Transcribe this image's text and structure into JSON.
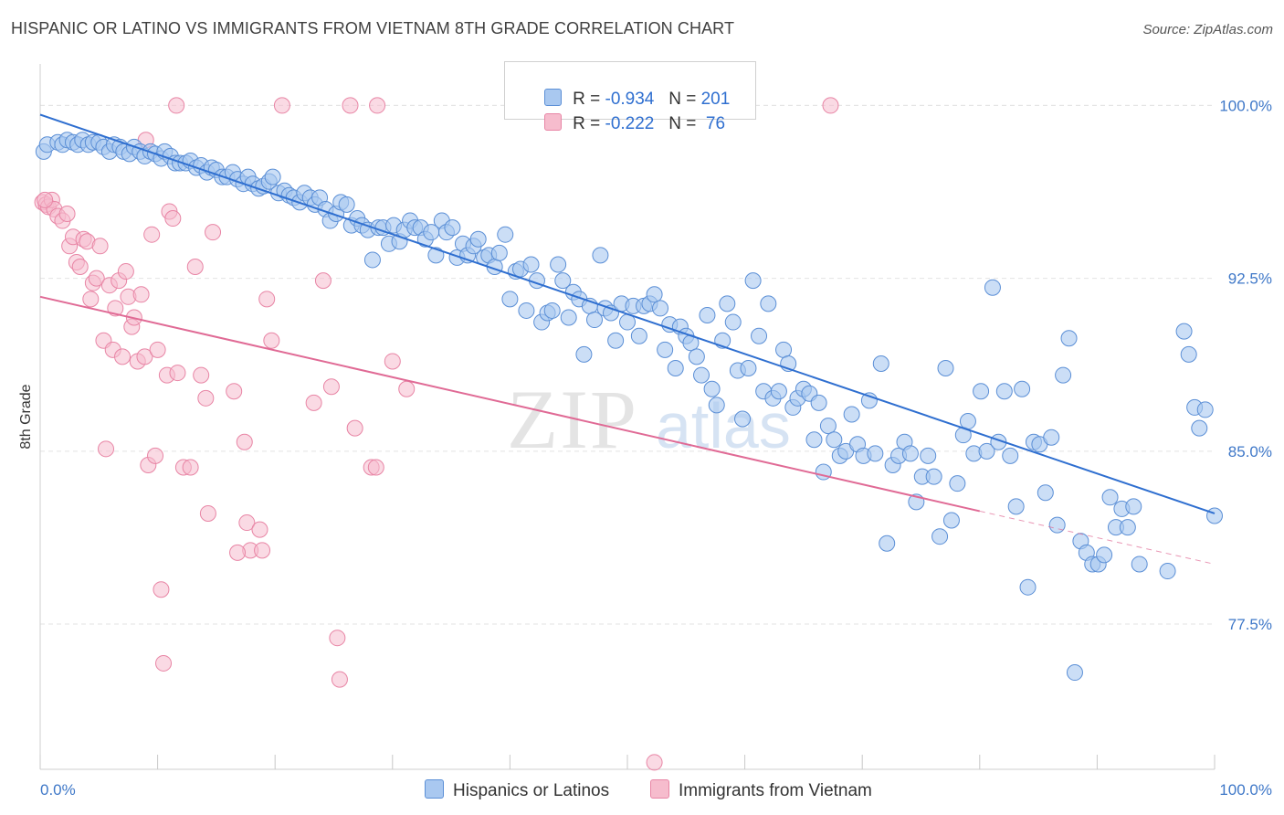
{
  "title": "HISPANIC OR LATINO VS IMMIGRANTS FROM VIETNAM 8TH GRADE CORRELATION CHART",
  "source": "Source: ZipAtlas.com",
  "legend": {
    "row1": {
      "r_label": "R = ",
      "r_value": "-0.934",
      "n_label": "N = ",
      "n_value": "201"
    },
    "row2": {
      "r_label": "R = ",
      "r_value": "-0.222",
      "n_label": "N = ",
      "n_value": " 76"
    }
  },
  "bottom_legend": {
    "series1": "Hispanics or Latinos",
    "series2": "Immigrants from Vietnam"
  },
  "chart_data": {
    "type": "scatter",
    "title": "HISPANIC OR LATINO VS IMMIGRANTS FROM VIETNAM 8TH GRADE CORRELATION CHART",
    "xlabel": "",
    "ylabel": "8th Grade",
    "xlim": [
      0,
      100
    ],
    "ylim": [
      71.2,
      101.8
    ],
    "x_tick_labels": [
      "0.0%",
      "100.0%"
    ],
    "y_ticks": [
      77.5,
      85.0,
      92.5,
      100.0
    ],
    "y_tick_labels": [
      "77.5%",
      "85.0%",
      "92.5%",
      "100.0%"
    ],
    "grid": true,
    "legend_position": "top-center",
    "colors": {
      "blue_fill": "#a9c8f0",
      "blue_stroke": "#5b8fd6",
      "blue_line": "#2f6fd0",
      "pink_fill": "#f6bccd",
      "pink_stroke": "#e885a5",
      "pink_line": "#e06a95"
    },
    "series": [
      {
        "name": "Hispanics or Latinos",
        "r": -0.934,
        "n": 201,
        "trend": {
          "x0": 0,
          "y0": 99.6,
          "x1": 100,
          "y1": 82.3
        },
        "points": [
          [
            0.3,
            98.0
          ],
          [
            0.6,
            98.3
          ],
          [
            1.5,
            98.4
          ],
          [
            1.9,
            98.3
          ],
          [
            2.3,
            98.5
          ],
          [
            2.8,
            98.4
          ],
          [
            3.2,
            98.3
          ],
          [
            3.6,
            98.5
          ],
          [
            4.1,
            98.3
          ],
          [
            4.5,
            98.4
          ],
          [
            5.0,
            98.4
          ],
          [
            5.4,
            98.2
          ],
          [
            5.9,
            98.0
          ],
          [
            6.3,
            98.3
          ],
          [
            6.8,
            98.2
          ],
          [
            7.1,
            98.0
          ],
          [
            7.6,
            97.9
          ],
          [
            8.0,
            98.2
          ],
          [
            8.5,
            98.0
          ],
          [
            8.9,
            97.8
          ],
          [
            9.4,
            98.0
          ],
          [
            9.8,
            97.9
          ],
          [
            10.3,
            97.7
          ],
          [
            10.6,
            98.0
          ],
          [
            11.1,
            97.8
          ],
          [
            11.5,
            97.5
          ],
          [
            11.9,
            97.5
          ],
          [
            12.4,
            97.5
          ],
          [
            12.8,
            97.6
          ],
          [
            13.3,
            97.3
          ],
          [
            13.7,
            97.4
          ],
          [
            14.2,
            97.1
          ],
          [
            14.6,
            97.3
          ],
          [
            15.0,
            97.2
          ],
          [
            15.5,
            96.9
          ],
          [
            15.9,
            96.9
          ],
          [
            16.4,
            97.1
          ],
          [
            16.8,
            96.8
          ],
          [
            17.3,
            96.6
          ],
          [
            17.7,
            96.9
          ],
          [
            18.1,
            96.6
          ],
          [
            18.6,
            96.4
          ],
          [
            19.0,
            96.5
          ],
          [
            19.5,
            96.7
          ],
          [
            19.8,
            96.9
          ],
          [
            20.3,
            96.2
          ],
          [
            20.8,
            96.3
          ],
          [
            21.2,
            96.1
          ],
          [
            21.6,
            96.0
          ],
          [
            22.1,
            95.8
          ],
          [
            22.5,
            96.2
          ],
          [
            23.0,
            96.0
          ],
          [
            23.4,
            95.7
          ],
          [
            23.8,
            96.0
          ],
          [
            24.3,
            95.5
          ],
          [
            24.7,
            95.0
          ],
          [
            25.2,
            95.3
          ],
          [
            25.6,
            95.8
          ],
          [
            26.1,
            95.7
          ],
          [
            26.5,
            94.8
          ],
          [
            27.0,
            95.1
          ],
          [
            27.4,
            94.8
          ],
          [
            27.9,
            94.6
          ],
          [
            28.3,
            93.3
          ],
          [
            28.8,
            94.7
          ],
          [
            29.2,
            94.7
          ],
          [
            29.7,
            94.0
          ],
          [
            30.1,
            94.8
          ],
          [
            30.6,
            94.1
          ],
          [
            31.0,
            94.6
          ],
          [
            31.5,
            95.0
          ],
          [
            31.9,
            94.7
          ],
          [
            32.4,
            94.7
          ],
          [
            32.8,
            94.2
          ],
          [
            33.3,
            94.5
          ],
          [
            33.7,
            93.5
          ],
          [
            34.2,
            95.0
          ],
          [
            34.6,
            94.5
          ],
          [
            35.1,
            94.7
          ],
          [
            35.5,
            93.4
          ],
          [
            36.0,
            94.0
          ],
          [
            36.4,
            93.5
          ],
          [
            36.9,
            93.9
          ],
          [
            37.3,
            94.2
          ],
          [
            37.8,
            93.4
          ],
          [
            38.2,
            93.5
          ],
          [
            38.7,
            93.0
          ],
          [
            39.1,
            93.6
          ],
          [
            39.6,
            94.4
          ],
          [
            40.0,
            91.6
          ],
          [
            40.5,
            92.8
          ],
          [
            40.9,
            92.9
          ],
          [
            41.4,
            91.1
          ],
          [
            41.8,
            93.1
          ],
          [
            42.3,
            92.4
          ],
          [
            42.7,
            90.6
          ],
          [
            43.2,
            91.0
          ],
          [
            43.6,
            91.1
          ],
          [
            44.1,
            93.1
          ],
          [
            44.5,
            92.4
          ],
          [
            45.0,
            90.8
          ],
          [
            45.4,
            91.9
          ],
          [
            45.9,
            91.6
          ],
          [
            46.3,
            89.2
          ],
          [
            46.8,
            91.3
          ],
          [
            47.2,
            90.7
          ],
          [
            47.7,
            93.5
          ],
          [
            48.1,
            91.2
          ],
          [
            48.6,
            91.0
          ],
          [
            49.0,
            89.8
          ],
          [
            49.5,
            91.4
          ],
          [
            50.0,
            90.6
          ],
          [
            50.5,
            91.3
          ],
          [
            51.0,
            90.0
          ],
          [
            51.4,
            91.3
          ],
          [
            51.9,
            91.4
          ],
          [
            52.3,
            91.8
          ],
          [
            52.8,
            91.2
          ],
          [
            53.2,
            89.4
          ],
          [
            53.6,
            90.5
          ],
          [
            54.1,
            88.6
          ],
          [
            54.5,
            90.4
          ],
          [
            55.0,
            90.0
          ],
          [
            55.4,
            89.7
          ],
          [
            55.9,
            89.1
          ],
          [
            56.3,
            88.3
          ],
          [
            56.8,
            90.9
          ],
          [
            57.2,
            87.7
          ],
          [
            57.6,
            87.0
          ],
          [
            58.1,
            89.8
          ],
          [
            58.5,
            91.4
          ],
          [
            59.0,
            90.6
          ],
          [
            59.4,
            88.5
          ],
          [
            59.8,
            86.4
          ],
          [
            60.3,
            88.6
          ],
          [
            60.7,
            92.4
          ],
          [
            61.2,
            90.0
          ],
          [
            61.6,
            87.6
          ],
          [
            62.0,
            91.4
          ],
          [
            62.4,
            87.3
          ],
          [
            62.9,
            87.6
          ],
          [
            63.3,
            89.4
          ],
          [
            63.7,
            88.8
          ],
          [
            64.1,
            86.9
          ],
          [
            64.5,
            87.3
          ],
          [
            65.0,
            87.7
          ],
          [
            65.5,
            87.5
          ],
          [
            65.9,
            85.5
          ],
          [
            66.3,
            87.1
          ],
          [
            66.7,
            84.1
          ],
          [
            67.1,
            86.1
          ],
          [
            67.6,
            85.5
          ],
          [
            68.1,
            84.8
          ],
          [
            68.6,
            85.0
          ],
          [
            69.1,
            86.6
          ],
          [
            69.6,
            85.3
          ],
          [
            70.1,
            84.8
          ],
          [
            70.6,
            87.2
          ],
          [
            71.1,
            84.9
          ],
          [
            71.6,
            88.8
          ],
          [
            72.1,
            81.0
          ],
          [
            72.6,
            84.4
          ],
          [
            73.1,
            84.8
          ],
          [
            73.6,
            85.4
          ],
          [
            74.1,
            84.9
          ],
          [
            74.6,
            82.8
          ],
          [
            75.1,
            83.9
          ],
          [
            75.6,
            84.8
          ],
          [
            76.1,
            83.9
          ],
          [
            76.6,
            81.3
          ],
          [
            77.1,
            88.6
          ],
          [
            77.6,
            82.0
          ],
          [
            78.1,
            83.6
          ],
          [
            78.6,
            85.7
          ],
          [
            79.0,
            86.3
          ],
          [
            79.5,
            84.9
          ],
          [
            80.1,
            87.6
          ],
          [
            80.6,
            85.0
          ],
          [
            81.1,
            92.1
          ],
          [
            81.6,
            85.4
          ],
          [
            82.1,
            87.6
          ],
          [
            82.6,
            84.8
          ],
          [
            83.1,
            82.6
          ],
          [
            83.6,
            87.7
          ],
          [
            84.1,
            79.1
          ],
          [
            84.6,
            85.4
          ],
          [
            85.1,
            85.3
          ],
          [
            85.6,
            83.2
          ],
          [
            86.1,
            85.6
          ],
          [
            86.6,
            81.8
          ],
          [
            87.1,
            88.3
          ],
          [
            87.6,
            89.9
          ],
          [
            88.1,
            75.4
          ],
          [
            88.6,
            81.1
          ],
          [
            89.1,
            80.6
          ],
          [
            89.6,
            80.1
          ],
          [
            90.1,
            80.1
          ],
          [
            90.6,
            80.5
          ],
          [
            91.1,
            83.0
          ],
          [
            91.6,
            81.7
          ],
          [
            92.1,
            82.5
          ],
          [
            92.6,
            81.7
          ],
          [
            93.1,
            82.6
          ],
          [
            93.6,
            80.1
          ],
          [
            97.4,
            90.2
          ],
          [
            97.8,
            89.2
          ],
          [
            98.3,
            86.9
          ],
          [
            98.7,
            86.0
          ],
          [
            99.2,
            86.8
          ],
          [
            100.0,
            82.2
          ],
          [
            96.0,
            79.8
          ]
        ]
      },
      {
        "name": "Immigrants from Vietnam",
        "r": -0.222,
        "n": 76,
        "trend": {
          "x0": 0,
          "y0": 91.7,
          "x1": 80,
          "y1": 82.4,
          "dash_to_x": 100,
          "dash_to_y": 80.1
        },
        "points": [
          [
            0.2,
            95.8
          ],
          [
            0.5,
            95.7
          ],
          [
            0.7,
            95.6
          ],
          [
            1.0,
            95.9
          ],
          [
            1.2,
            95.5
          ],
          [
            1.5,
            95.2
          ],
          [
            1.9,
            95.0
          ],
          [
            2.3,
            95.3
          ],
          [
            2.5,
            93.9
          ],
          [
            2.8,
            94.3
          ],
          [
            3.1,
            93.2
          ],
          [
            3.4,
            93.0
          ],
          [
            3.7,
            94.2
          ],
          [
            4.0,
            94.1
          ],
          [
            4.3,
            91.6
          ],
          [
            4.5,
            92.3
          ],
          [
            4.8,
            92.5
          ],
          [
            5.1,
            93.9
          ],
          [
            5.4,
            89.8
          ],
          [
            5.6,
            85.1
          ],
          [
            5.9,
            92.2
          ],
          [
            6.2,
            89.4
          ],
          [
            6.4,
            91.2
          ],
          [
            6.7,
            92.4
          ],
          [
            7.0,
            89.1
          ],
          [
            7.3,
            92.8
          ],
          [
            7.5,
            91.7
          ],
          [
            7.8,
            90.4
          ],
          [
            8.0,
            90.8
          ],
          [
            8.3,
            88.9
          ],
          [
            8.6,
            91.8
          ],
          [
            8.9,
            89.1
          ],
          [
            9.0,
            98.5
          ],
          [
            9.2,
            84.4
          ],
          [
            9.5,
            94.4
          ],
          [
            9.8,
            84.8
          ],
          [
            10.0,
            89.4
          ],
          [
            10.3,
            79.0
          ],
          [
            10.5,
            75.8
          ],
          [
            10.8,
            88.3
          ],
          [
            11.0,
            95.4
          ],
          [
            11.3,
            95.1
          ],
          [
            11.7,
            88.4
          ],
          [
            12.2,
            84.3
          ],
          [
            12.8,
            84.3
          ],
          [
            13.2,
            93.0
          ],
          [
            13.7,
            88.3
          ],
          [
            14.1,
            87.3
          ],
          [
            14.3,
            82.3
          ],
          [
            14.7,
            94.5
          ],
          [
            16.5,
            87.6
          ],
          [
            17.4,
            85.4
          ],
          [
            17.6,
            81.9
          ],
          [
            17.9,
            80.7
          ],
          [
            18.7,
            81.6
          ],
          [
            18.9,
            80.7
          ],
          [
            19.3,
            91.6
          ],
          [
            19.7,
            89.8
          ],
          [
            16.8,
            80.6
          ],
          [
            11.6,
            100.0
          ],
          [
            20.6,
            100.0
          ],
          [
            23.3,
            87.1
          ],
          [
            24.1,
            92.4
          ],
          [
            24.8,
            87.8
          ],
          [
            25.3,
            76.9
          ],
          [
            25.5,
            75.1
          ],
          [
            26.4,
            100.0
          ],
          [
            26.8,
            86.0
          ],
          [
            28.2,
            84.3
          ],
          [
            28.6,
            84.3
          ],
          [
            28.7,
            100.0
          ],
          [
            30.0,
            88.9
          ],
          [
            31.2,
            87.7
          ],
          [
            52.3,
            71.5
          ],
          [
            67.3,
            100.0
          ],
          [
            0.4,
            95.9
          ]
        ]
      }
    ]
  }
}
